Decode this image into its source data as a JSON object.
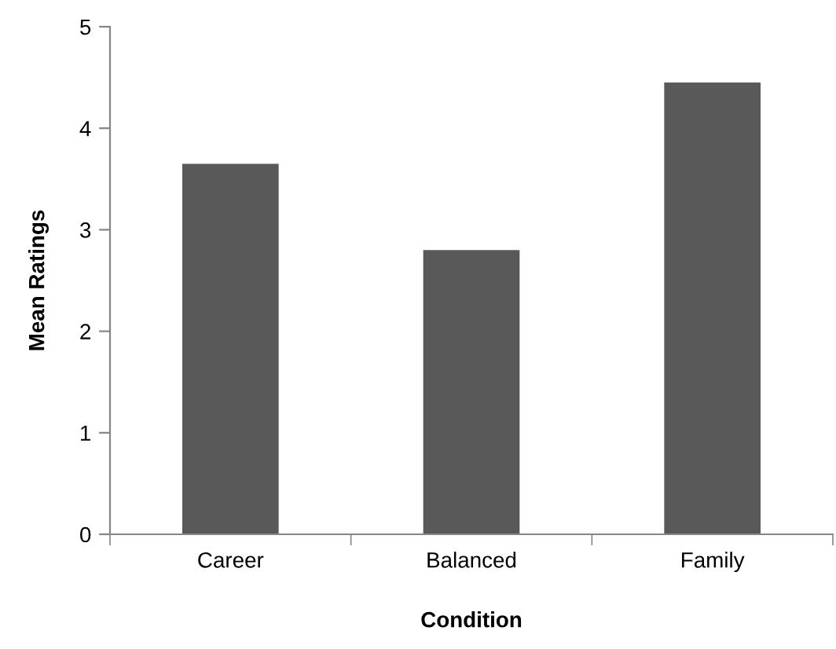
{
  "chart_data": {
    "type": "bar",
    "xlabel": "Condition",
    "ylabel": "Mean Ratings",
    "categories": [
      "Career",
      "Balanced",
      "Family"
    ],
    "values": [
      3.65,
      2.8,
      4.45
    ],
    "color": "#595959",
    "ylim": [
      0,
      5
    ],
    "yticks": [
      0,
      1,
      2,
      3,
      4,
      5
    ],
    "grid": false,
    "legend": false
  }
}
